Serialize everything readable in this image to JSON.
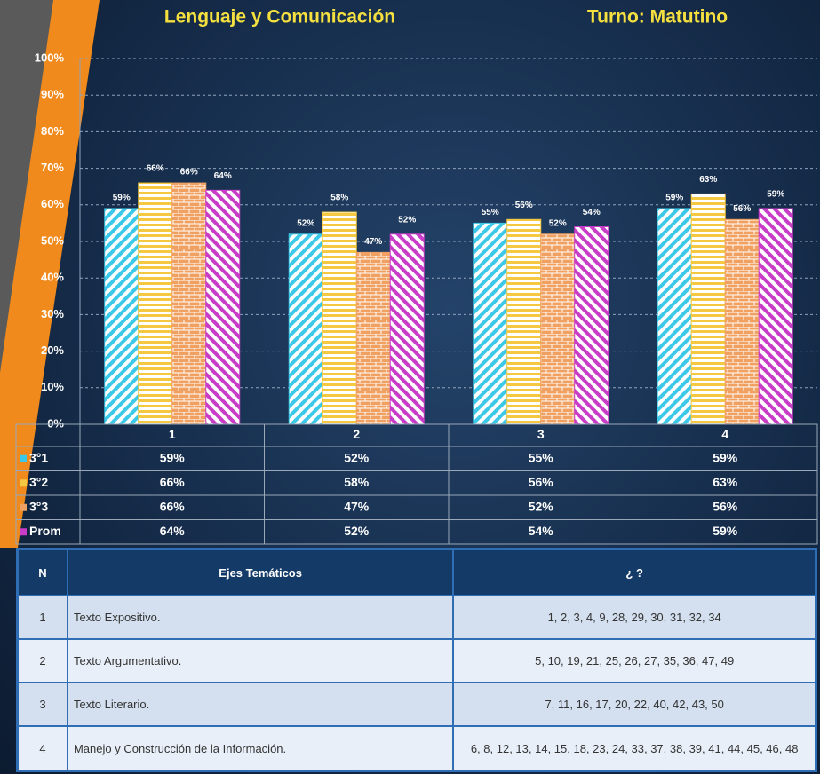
{
  "chart_data": {
    "type": "bar",
    "title": "Lenguaje y Comunicación",
    "subtitle": "Turno: Matutino",
    "categories": [
      "1",
      "2",
      "3",
      "4"
    ],
    "series": [
      {
        "name": "3°1",
        "color": "#3cc8e8",
        "values": [
          59,
          52,
          55,
          59
        ],
        "value_labels": [
          "59%",
          "52%",
          "55%",
          "59%"
        ]
      },
      {
        "name": "3°2",
        "color": "#f5c842",
        "values": [
          66,
          58,
          56,
          63
        ],
        "value_labels": [
          "66%",
          "58%",
          "56%",
          "63%"
        ]
      },
      {
        "name": "3°3",
        "color": "#f0a060",
        "values": [
          66,
          47,
          52,
          56
        ],
        "value_labels": [
          "66%",
          "47%",
          "52%",
          "56%"
        ]
      },
      {
        "name": "Prom",
        "color": "#c83cc8",
        "values": [
          64,
          52,
          54,
          59
        ],
        "value_labels": [
          "64%",
          "52%",
          "54%",
          "59%"
        ]
      }
    ],
    "ylim": [
      0,
      100
    ],
    "yticks": [
      {
        "value": 0,
        "label": "0%"
      },
      {
        "value": 10,
        "label": "10%"
      },
      {
        "value": 20,
        "label": "20%"
      },
      {
        "value": 30,
        "label": "30%"
      },
      {
        "value": 40,
        "label": "40%"
      },
      {
        "value": 50,
        "label": "50%"
      },
      {
        "value": 60,
        "label": "60%"
      },
      {
        "value": 70,
        "label": "70%"
      },
      {
        "value": 80,
        "label": "80%"
      },
      {
        "value": 90,
        "label": "90%"
      },
      {
        "value": 100,
        "label": "100%"
      }
    ],
    "grid": true
  },
  "table": {
    "header": [
      "N",
      "Ejes Temáticos",
      "¿ ?"
    ],
    "rows": [
      [
        "1",
        "Texto Expositivo.",
        "1, 2, 3, 4, 9, 28, 29, 30, 31, 32, 34"
      ],
      [
        "2",
        "Texto Argumentativo.",
        "5, 10, 19, 21, 25, 26, 27, 35, 36, 47, 49"
      ],
      [
        "3",
        "Texto Literario.",
        "7, 11, 16, 17, 20, 22, 40, 42, 43, 50"
      ],
      [
        "4",
        "Manejo y Construcción de la Información.",
        "6, 8, 12, 13, 14, 15, 18, 23, 24, 33, 37, 38, 39, 41, 44, 45, 46, 48"
      ]
    ]
  }
}
